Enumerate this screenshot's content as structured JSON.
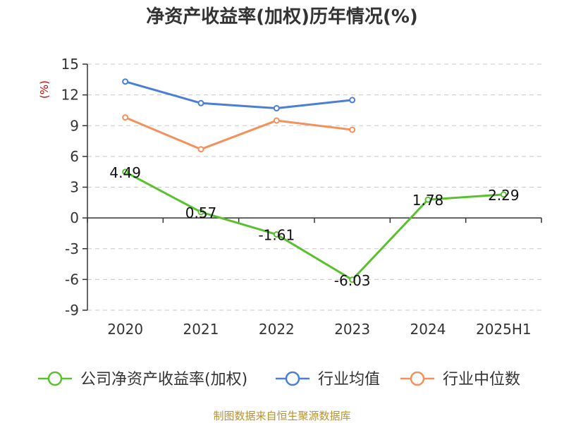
{
  "chart_data": {
    "type": "line",
    "title": "净资产收益率(加权)历年情况(%)",
    "ylabel": "(%)",
    "categories": [
      "2020",
      "2021",
      "2022",
      "2023",
      "2024",
      "2025H1"
    ],
    "ylim": [
      -9,
      15
    ],
    "yticks": [
      "15",
      "12",
      "9",
      "6",
      "3",
      "0",
      "-3",
      "-6",
      "-9"
    ],
    "grid": true,
    "legend_position": "bottom",
    "series": [
      {
        "name": "公司净资产收益率(加权)",
        "color": "#5ac12e",
        "values": [
          4.49,
          0.57,
          -1.61,
          -6.03,
          1.78,
          2.29
        ],
        "labels": [
          "4.49",
          "0.57",
          "-1.61",
          "-6.03",
          "1.78",
          "2.29"
        ]
      },
      {
        "name": "行业均值",
        "color": "#4a7fd6",
        "values": [
          13.3,
          11.2,
          10.7,
          11.5,
          null,
          null
        ]
      },
      {
        "name": "行业中位数",
        "color": "#f4905a",
        "values": [
          9.8,
          6.7,
          9.5,
          8.6,
          null,
          null
        ]
      }
    ],
    "source": "制图数据来自恒生聚源数据库"
  }
}
